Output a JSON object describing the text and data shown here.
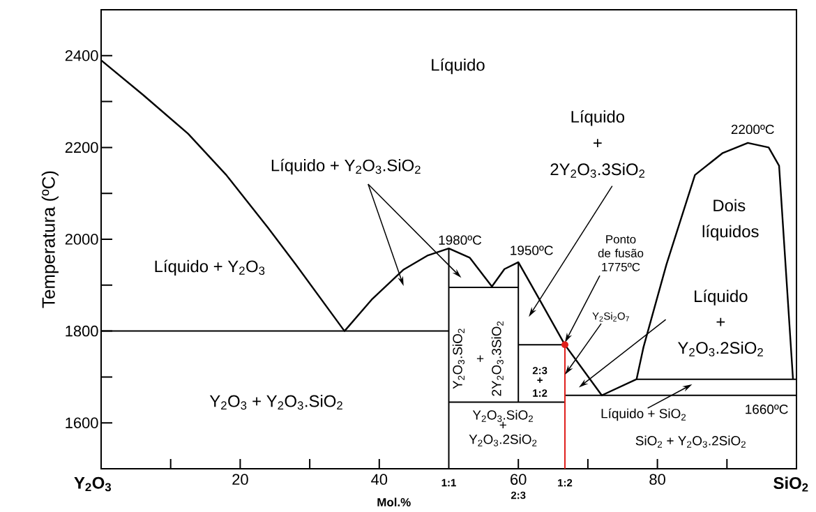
{
  "chart_data": {
    "type": "line",
    "xlabel": "Mol.%",
    "ylabel": "Temperatura (ºC)",
    "xlim": [
      0,
      100
    ],
    "ylim": [
      1500,
      2500
    ],
    "xticks": [
      {
        "value": 10,
        "label": null
      },
      20,
      {
        "value": 30,
        "label": null
      },
      40,
      60,
      {
        "value": 70,
        "label": null
      },
      80,
      {
        "value": 90,
        "label": null
      }
    ],
    "yticks": [
      1600,
      {
        "value": 1700,
        "label": null
      },
      1800,
      {
        "value": 1900,
        "label": null
      },
      2000,
      {
        "value": 2100,
        "label": null
      },
      2200,
      {
        "value": 2300,
        "label": null
      },
      2400
    ],
    "series": [
      {
        "color": "#000000",
        "x": [
          0,
          6,
          12.5,
          18,
          24,
          28,
          35,
          39,
          43.5,
          47,
          50,
          53,
          56.2,
          58,
          60,
          63,
          66.7,
          72,
          77,
          78,
          81.3,
          85.4,
          89.4,
          93,
          96,
          97.5,
          99.5
        ],
        "values": [
          2390,
          2315,
          2230,
          2140,
          2025,
          1945,
          1800,
          1870,
          1934,
          1965,
          1980,
          1960,
          1897,
          1935,
          1950,
          1870,
          1770,
          1660,
          1695,
          1765,
          1945,
          2140,
          2188,
          2210,
          2200,
          2160,
          1695
        ]
      },
      {
        "color": "#000000",
        "x": [
          0,
          50
        ],
        "values": [
          1800,
          1800
        ]
      },
      {
        "color": "#000000",
        "x": [
          50,
          60
        ],
        "values": [
          1895,
          1895
        ]
      },
      {
        "color": "#000000",
        "x": [
          50,
          66.7
        ],
        "values": [
          1645,
          1645
        ]
      },
      {
        "color": "#000000",
        "x": [
          60,
          66.7
        ],
        "values": [
          1770,
          1770
        ]
      },
      {
        "color": "#000000",
        "x": [
          66.7,
          100
        ],
        "values": [
          1660,
          1660
        ]
      },
      {
        "color": "#000000",
        "x": [
          77,
          100
        ],
        "values": [
          1695,
          1695
        ]
      },
      {
        "color": "#000000",
        "x": [
          50,
          50
        ],
        "values": [
          1500,
          1980
        ]
      },
      {
        "color": "#000000",
        "x": [
          60,
          60
        ],
        "values": [
          1645,
          1950
        ]
      },
      {
        "color": "#e0201c",
        "x": [
          66.7,
          66.7
        ],
        "values": [
          1500,
          1770
        ]
      },
      {
        "type": "scatter",
        "color": "#e0201c",
        "x": [
          66.7
        ],
        "values": [
          1770
        ]
      }
    ],
    "annotations": [
      "Líquido",
      "Líquido + Y$_{2}$O$_{3}$.SiO$_{2}$",
      "Líquido",
      "+",
      "2Y$_{2}$O$_{3}$.3SiO$_{2}$",
      "Dois",
      "líquidos",
      "Líquido + Y$_{2}$O$_{3}$",
      {
        "text": "1980ºC",
        "x": 50,
        "y": 1980
      },
      {
        "text": "1950ºC",
        "x": 60,
        "y": 1950
      },
      {
        "text": "2200ºC",
        "x": 93,
        "y": 2200
      },
      {
        "text": "Ponto de fusão 1775ºC",
        "x": 66.7,
        "y": 1775
      },
      {
        "text": "Y$_{2}$Si$_{2}$O$_{7}$",
        "x": 66.7,
        "y": 1705
      },
      "Líquido",
      "+",
      "Y$_{2}$O$_{3}$.2SiO$_{2}$",
      "Y$_{2}$O$_{3}$.SiO$_{2}$",
      "+",
      "2Y$_{2}$O$_{3}$.3SiO$_{2}$",
      "2:3",
      "+",
      "1:2",
      "Y$_{2}$O$_{3}$ + Y$_{2}$O$_{3}$.SiO$_{2}$",
      "Y$_{2}$O$_{3}$.SiO$_{2}$",
      "+",
      "Y$_{2}$O$_{3}$.2SiO$_{2}$",
      "Líquido + SiO$_{2}$",
      {
        "text": "1660ºC",
        "x": 96,
        "y": 1660
      },
      "SiO$_{2}$ + Y$_{2}$O$_{3}$.2SiO$_{2}$",
      "2:3",
      "Y$_{2}$O$_{3}$",
      "SiO$_{2}$",
      "1:1",
      "1:2"
    ]
  }
}
